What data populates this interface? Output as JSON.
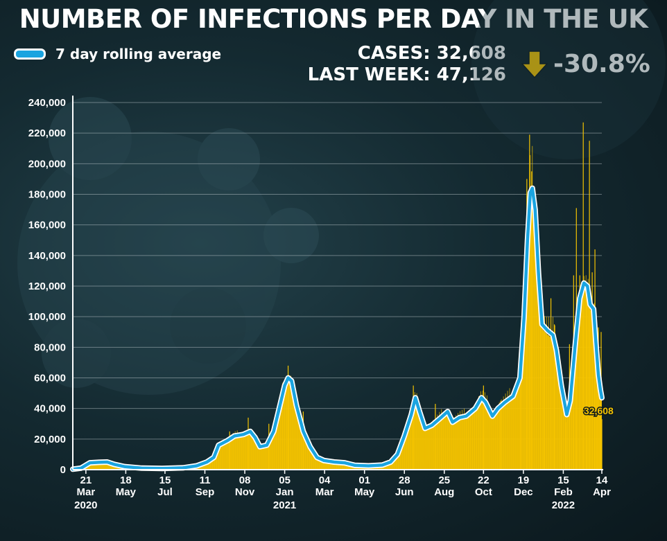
{
  "headline": "NUMBER OF INFECTIONS PER DAY IN THE UK",
  "legend": {
    "label": "7 day rolling average"
  },
  "stats": {
    "cases_line": "CASES: 32,608",
    "last_week_line": "LAST WEEK: 47,126",
    "change": "-30.8%"
  },
  "colors": {
    "background": "#142a31",
    "bars": "#f5c400",
    "line": "#1aa4e0",
    "line_outline": "#ffffff",
    "arrow": "#f5c400"
  },
  "chart_data": {
    "type": "bar",
    "title": "NUMBER OF INFECTIONS PER DAY IN THE UK",
    "xlabel": "",
    "ylabel": "",
    "ylim": [
      0,
      240000
    ],
    "grid": true,
    "legend_position": "top-left",
    "x_range_days": [
      0,
      769
    ],
    "y_ticks": [
      0,
      20000,
      40000,
      60000,
      80000,
      100000,
      120000,
      140000,
      160000,
      180000,
      200000,
      220000,
      240000
    ],
    "y_tick_labels": [
      "0",
      "20,000",
      "40,000",
      "60,000",
      "80,000",
      "100,000",
      "120,000",
      "140,000",
      "160,000",
      "180,000",
      "200,000",
      "220,000",
      "240,000"
    ],
    "x_ticks": [
      {
        "day": 19,
        "day_label": "21",
        "month": "Mar",
        "year": "2020"
      },
      {
        "day": 77,
        "day_label": "18",
        "month": "May",
        "year": ""
      },
      {
        "day": 134,
        "day_label": "15",
        "month": "Jul",
        "year": ""
      },
      {
        "day": 192,
        "day_label": "11",
        "month": "Sep",
        "year": ""
      },
      {
        "day": 250,
        "day_label": "08",
        "month": "Nov",
        "year": ""
      },
      {
        "day": 308,
        "day_label": "05",
        "month": "Jan",
        "year": "2021"
      },
      {
        "day": 366,
        "day_label": "04",
        "month": "Mar",
        "year": ""
      },
      {
        "day": 424,
        "day_label": "01",
        "month": "May",
        "year": ""
      },
      {
        "day": 482,
        "day_label": "28",
        "month": "Jun",
        "year": ""
      },
      {
        "day": 540,
        "day_label": "25",
        "month": "Aug",
        "year": ""
      },
      {
        "day": 597,
        "day_label": "22",
        "month": "Oct",
        "year": ""
      },
      {
        "day": 655,
        "day_label": "19",
        "month": "Dec",
        "year": ""
      },
      {
        "day": 713,
        "day_label": "15",
        "month": "Feb",
        "year": "2022"
      },
      {
        "day": 769,
        "day_label": "14",
        "month": "Apr",
        "year": ""
      }
    ],
    "series": [
      {
        "name": "7 day rolling average",
        "type": "line",
        "points": [
          [
            0,
            300
          ],
          [
            12,
            1000
          ],
          [
            25,
            4500
          ],
          [
            38,
            4800
          ],
          [
            50,
            5000
          ],
          [
            60,
            3500
          ],
          [
            75,
            2000
          ],
          [
            100,
            1000
          ],
          [
            130,
            800
          ],
          [
            160,
            1200
          ],
          [
            180,
            2500
          ],
          [
            195,
            5000
          ],
          [
            205,
            8000
          ],
          [
            212,
            16000
          ],
          [
            225,
            19000
          ],
          [
            235,
            22000
          ],
          [
            248,
            23000
          ],
          [
            258,
            25000
          ],
          [
            265,
            21000
          ],
          [
            272,
            15000
          ],
          [
            282,
            16000
          ],
          [
            292,
            25000
          ],
          [
            300,
            40000
          ],
          [
            308,
            55000
          ],
          [
            313,
            60000
          ],
          [
            318,
            58000
          ],
          [
            325,
            42000
          ],
          [
            335,
            25000
          ],
          [
            345,
            15000
          ],
          [
            355,
            8000
          ],
          [
            365,
            6000
          ],
          [
            380,
            5000
          ],
          [
            395,
            4500
          ],
          [
            410,
            2800
          ],
          [
            430,
            2500
          ],
          [
            450,
            3000
          ],
          [
            462,
            5000
          ],
          [
            472,
            10000
          ],
          [
            482,
            22000
          ],
          [
            492,
            36000
          ],
          [
            498,
            47000
          ],
          [
            504,
            38000
          ],
          [
            512,
            27000
          ],
          [
            522,
            29000
          ],
          [
            535,
            34000
          ],
          [
            545,
            38000
          ],
          [
            552,
            31000
          ],
          [
            562,
            34000
          ],
          [
            572,
            35000
          ],
          [
            585,
            40000
          ],
          [
            594,
            47000
          ],
          [
            600,
            44000
          ],
          [
            610,
            35000
          ],
          [
            618,
            40000
          ],
          [
            628,
            44000
          ],
          [
            640,
            48000
          ],
          [
            650,
            60000
          ],
          [
            656,
            100000
          ],
          [
            661,
            150000
          ],
          [
            665,
            181000
          ],
          [
            668,
            184000
          ],
          [
            672,
            170000
          ],
          [
            677,
            128000
          ],
          [
            682,
            95000
          ],
          [
            690,
            91000
          ],
          [
            698,
            88000
          ],
          [
            703,
            78000
          ],
          [
            710,
            55000
          ],
          [
            718,
            36000
          ],
          [
            723,
            45000
          ],
          [
            730,
            80000
          ],
          [
            737,
            112000
          ],
          [
            743,
            122000
          ],
          [
            748,
            120000
          ],
          [
            752,
            108000
          ],
          [
            757,
            105000
          ],
          [
            760,
            85000
          ],
          [
            764,
            62000
          ],
          [
            767,
            52000
          ],
          [
            769,
            47000
          ]
        ]
      },
      {
        "name": "Daily cases",
        "type": "bar",
        "spikes": [
          [
            228,
            25000
          ],
          [
            255,
            34000
          ],
          [
            285,
            30000
          ],
          [
            313,
            68000
          ],
          [
            335,
            38000
          ],
          [
            495,
            55000
          ],
          [
            527,
            43000
          ],
          [
            597,
            55000
          ],
          [
            622,
            45000
          ],
          [
            651,
            68000
          ],
          [
            660,
            190000
          ],
          [
            664,
            219000
          ],
          [
            667,
            195000
          ],
          [
            680,
            110000
          ],
          [
            685,
            90000
          ],
          [
            695,
            112000
          ],
          [
            700,
            95000
          ],
          [
            710,
            60000
          ],
          [
            717,
            31000
          ],
          [
            722,
            82000
          ],
          [
            728,
            127000
          ],
          [
            732,
            171000
          ],
          [
            737,
            127000
          ],
          [
            742,
            227000
          ],
          [
            747,
            118000
          ],
          [
            751,
            215000
          ],
          [
            755,
            129000
          ],
          [
            759,
            144000
          ],
          [
            762,
            54000
          ],
          [
            764,
            93000
          ],
          [
            766,
            41000
          ],
          [
            768,
            90000
          ],
          [
            769,
            33000
          ]
        ]
      }
    ],
    "annotations": [
      {
        "text": "32,608",
        "day": 769,
        "value": 32608
      }
    ]
  }
}
